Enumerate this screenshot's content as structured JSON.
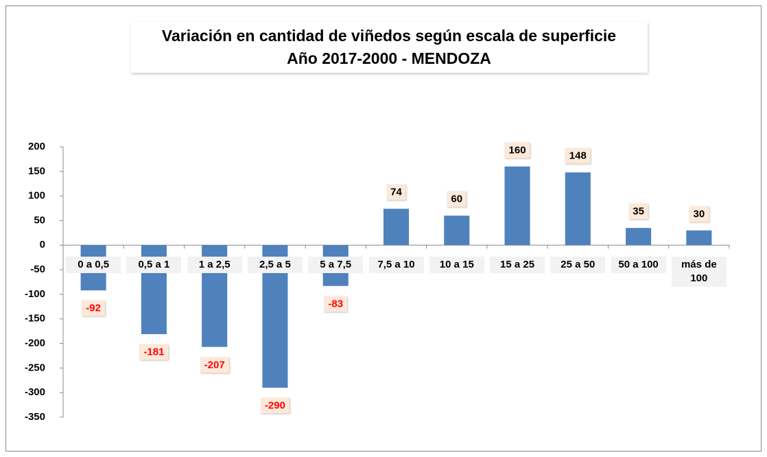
{
  "chart_data": {
    "type": "bar",
    "title": "Variación en cantidad de viñedos según escala de superficie",
    "subtitle": "Año 2017-2000 - MENDOZA",
    "categories": [
      "0 a 0,5",
      "0,5 a 1",
      "1 a 2,5",
      "2,5 a 5",
      "5 a 7,5",
      "7,5 a 10",
      "10 a 15",
      "15 a 25",
      "25 a 50",
      "50 a 100",
      "más de 100"
    ],
    "values": [
      -92,
      -181,
      -207,
      -290,
      -83,
      74,
      60,
      160,
      148,
      35,
      30
    ],
    "color": "#4f81bd",
    "ylim": [
      -350,
      200
    ],
    "yticks": [
      -350,
      -300,
      -250,
      -200,
      -150,
      -100,
      -50,
      0,
      50,
      100,
      150,
      200
    ],
    "grid": false
  }
}
